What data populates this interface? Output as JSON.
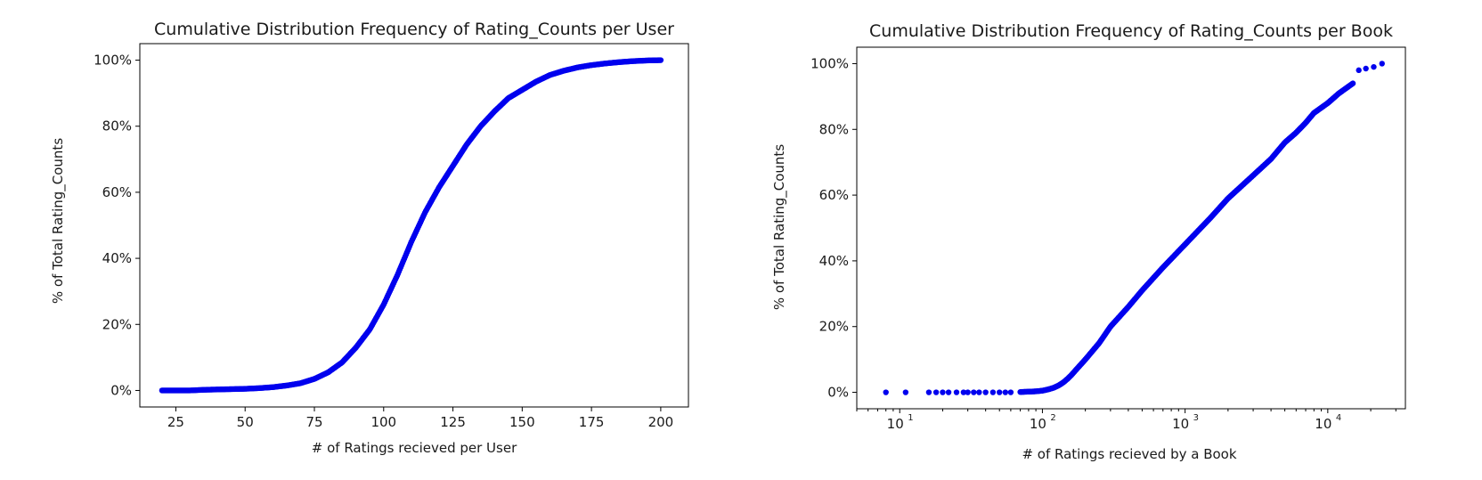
{
  "chart_data": [
    {
      "type": "scatter",
      "title": "Cumulative Distribution Frequency of Rating_Counts per User",
      "xlabel": "# of Ratings recieved per User",
      "ylabel": "% of Total Rating_Counts",
      "xscale": "linear",
      "xlim": [
        12,
        210
      ],
      "ylim": [
        -0.05,
        1.05
      ],
      "xticks": [
        25,
        50,
        75,
        100,
        125,
        150,
        175,
        200
      ],
      "xtick_labels": [
        "25",
        "50",
        "75",
        "100",
        "125",
        "150",
        "175",
        "200"
      ],
      "yticks": [
        0,
        0.2,
        0.4,
        0.6,
        0.8,
        1.0
      ],
      "ytick_labels": [
        "0%",
        "20%",
        "40%",
        "60%",
        "80%",
        "100%"
      ],
      "grid": false,
      "marker_color": "#0000ee",
      "series": [
        {
          "x": [
            20,
            25,
            30,
            35,
            40,
            45,
            50,
            55,
            60,
            65,
            70,
            75,
            80,
            85,
            90,
            95,
            100,
            105,
            110,
            115,
            120,
            125,
            130,
            135,
            140,
            145,
            150,
            155,
            160,
            165,
            170,
            175,
            180,
            185,
            190,
            195,
            200
          ],
          "y": [
            0.0,
            0.0,
            0.0,
            0.002,
            0.003,
            0.004,
            0.005,
            0.007,
            0.01,
            0.015,
            0.022,
            0.035,
            0.055,
            0.085,
            0.13,
            0.185,
            0.26,
            0.35,
            0.45,
            0.54,
            0.615,
            0.68,
            0.745,
            0.8,
            0.845,
            0.885,
            0.91,
            0.935,
            0.955,
            0.968,
            0.978,
            0.985,
            0.99,
            0.994,
            0.997,
            0.999,
            1.0
          ]
        }
      ]
    },
    {
      "type": "scatter",
      "title": "Cumulative Distribution Frequency of Rating_Counts per Book",
      "xlabel": "# of Ratings recieved by a Book",
      "ylabel": "% of Total Rating_Counts",
      "xscale": "log",
      "xlim": [
        5,
        35000
      ],
      "ylim": [
        -0.05,
        1.05
      ],
      "xticks": [
        10,
        100,
        1000,
        10000
      ],
      "xtick_labels": [
        "10",
        "10",
        "10",
        "10"
      ],
      "xtick_sups": [
        "1",
        "2",
        "3",
        "4"
      ],
      "yticks": [
        0,
        0.2,
        0.4,
        0.6,
        0.8,
        1.0
      ],
      "ytick_labels": [
        "0%",
        "20%",
        "40%",
        "60%",
        "80%",
        "100%"
      ],
      "grid": false,
      "marker_color": "#0000ee",
      "series": [
        {
          "x": [
            8,
            11,
            16,
            18,
            20,
            22,
            25,
            28,
            30,
            33,
            36,
            40,
            45,
            50,
            55,
            60,
            70,
            80,
            90,
            100,
            110,
            120,
            130,
            140,
            150,
            160,
            170,
            180,
            200,
            250,
            300,
            400,
            500,
            700,
            1000,
            1500,
            2000,
            3000,
            4000,
            5000,
            6000,
            7000,
            8000,
            10000,
            12000,
            15000,
            16500,
            18500,
            21000,
            24000
          ],
          "y": [
            0.0,
            0.0,
            0.0,
            0.0,
            0.0,
            0.0,
            0.0,
            0.0,
            0.0,
            0.0,
            0.0,
            0.0,
            0.0,
            0.0,
            0.0,
            0.0,
            0.001,
            0.002,
            0.003,
            0.005,
            0.009,
            0.014,
            0.021,
            0.03,
            0.041,
            0.053,
            0.066,
            0.078,
            0.1,
            0.15,
            0.2,
            0.26,
            0.31,
            0.38,
            0.45,
            0.53,
            0.59,
            0.66,
            0.71,
            0.76,
            0.79,
            0.82,
            0.85,
            0.88,
            0.91,
            0.94,
            0.98,
            0.985,
            0.99,
            1.0
          ]
        }
      ]
    }
  ]
}
